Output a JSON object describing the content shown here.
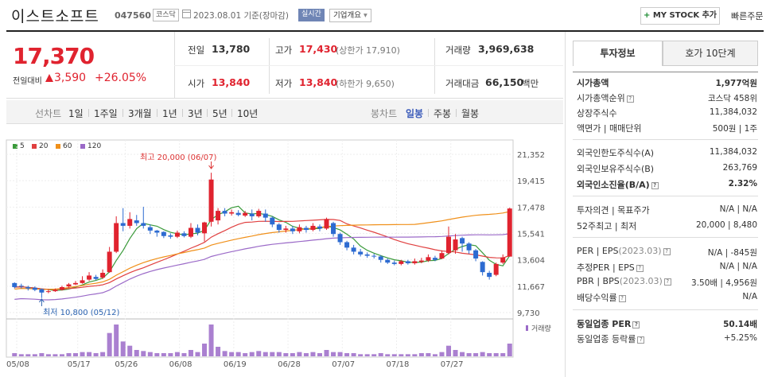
{
  "header": {
    "name": "이스트소프트",
    "code": "047560",
    "market": "코스닥",
    "date": "2023.08.01 기준(장마감)",
    "realtime": "실시간",
    "company_info": "기업개요",
    "company_arrow": "▾",
    "mystock_plus": "+",
    "mystock": "MY STOCK 추가",
    "quick_order": "빠른주문"
  },
  "price": {
    "current": "17,370",
    "change_label": "전일대비",
    "change_amount": "3,590",
    "change_percent": "+26.05%"
  },
  "summary": {
    "prev_close_label": "전일",
    "prev_close": "13,780",
    "high_label": "고가",
    "high": "17,430",
    "upper_limit": "(상한가 17,910)",
    "volume_label": "거래량",
    "volume": "3,969,638",
    "open_label": "시가",
    "open": "13,840",
    "low_label": "저가",
    "low": "13,840",
    "lower_limit": "(하한가 9,650)",
    "trade_value_label": "거래대금",
    "trade_value": "66,150",
    "trade_value_unit": "백만"
  },
  "toolbar": {
    "line_chart": "선차트",
    "periods": [
      "1일",
      "1주일",
      "3개월",
      "1년",
      "3년",
      "5년",
      "10년"
    ],
    "candle_chart": "봉차트",
    "candle_periods": [
      "일봉",
      "주봉",
      "월봉"
    ]
  },
  "legend": [
    {
      "label": "5",
      "color": "#3a9a3a"
    },
    {
      "label": "20",
      "color": "#e04040"
    },
    {
      "label": "60",
      "color": "#f0901a"
    },
    {
      "label": "120",
      "color": "#9b6ac8"
    }
  ],
  "annotations": {
    "high": "최고 20,000 (06/07)",
    "low": "최저 10,800 (05/12)",
    "volume": "거래량"
  },
  "chart_data": {
    "type": "candlestick",
    "y_ticks": [
      "21,352",
      "19,415",
      "17,478",
      "15,541",
      "13,604",
      "11,667",
      "9,730"
    ],
    "ylim": [
      9730,
      21352
    ],
    "x_ticks": [
      "05/08",
      "05/17",
      "05/26",
      "06/08",
      "06/19",
      "06/28",
      "07/07",
      "07/18",
      "07/27"
    ],
    "candles": [
      [
        11900,
        11600,
        11950,
        11500
      ],
      [
        11700,
        11650,
        11850,
        11500
      ],
      [
        11600,
        11500,
        11700,
        11350
      ],
      [
        11550,
        11400,
        11650,
        11300
      ],
      [
        11450,
        11200,
        11500,
        10800
      ],
      [
        11250,
        11300,
        11450,
        11150
      ],
      [
        11300,
        11400,
        11500,
        11250
      ],
      [
        11400,
        11600,
        11700,
        11350
      ],
      [
        11650,
        11800,
        11900,
        11550
      ],
      [
        11800,
        11900,
        12050,
        11750
      ],
      [
        11900,
        12100,
        12400,
        11850
      ],
      [
        12150,
        12450,
        12700,
        12050
      ],
      [
        12350,
        12200,
        12500,
        12100
      ],
      [
        12300,
        12650,
        12900,
        12200
      ],
      [
        12700,
        14200,
        14550,
        12650
      ],
      [
        14200,
        16300,
        16800,
        14100
      ],
      [
        16300,
        16100,
        17400,
        15700
      ],
      [
        16100,
        16600,
        17100,
        15900
      ],
      [
        16500,
        16300,
        16900,
        16100
      ],
      [
        16300,
        16100,
        17500,
        15900
      ],
      [
        16000,
        15750,
        16200,
        15500
      ],
      [
        15750,
        15600,
        15800,
        15300
      ],
      [
        15650,
        15350,
        15700,
        15200
      ],
      [
        15400,
        15300,
        15550,
        15150
      ],
      [
        15300,
        15600,
        15750,
        15200
      ],
      [
        15550,
        15350,
        15700,
        15250
      ],
      [
        15300,
        15950,
        16300,
        15200
      ],
      [
        15950,
        15600,
        16200,
        15400
      ],
      [
        15550,
        16350,
        16400,
        14950
      ],
      [
        16400,
        19500,
        20000,
        16050
      ],
      [
        16500,
        17200,
        17400,
        16200
      ],
      [
        17200,
        17000,
        17400,
        16800
      ],
      [
        17000,
        17100,
        17300,
        16850
      ],
      [
        17050,
        16900,
        17250,
        16800
      ],
      [
        16850,
        17050,
        17200,
        16750
      ],
      [
        17000,
        16800,
        17300,
        16500
      ],
      [
        16800,
        17200,
        17350,
        16700
      ],
      [
        17000,
        16700,
        17300,
        16400
      ],
      [
        16700,
        16200,
        16800,
        16000
      ],
      [
        16200,
        15800,
        16300,
        15600
      ],
      [
        15800,
        15900,
        16100,
        15600
      ],
      [
        15900,
        15700,
        16100,
        15500
      ],
      [
        15700,
        16000,
        16200,
        15550
      ],
      [
        15950,
        15800,
        16100,
        15600
      ],
      [
        15800,
        16100,
        16300,
        15700
      ],
      [
        16050,
        15900,
        16200,
        15700
      ],
      [
        15900,
        16600,
        16700,
        15800
      ],
      [
        16300,
        15500,
        16400,
        15300
      ],
      [
        15500,
        14900,
        15600,
        14700
      ],
      [
        14900,
        14500,
        15000,
        14300
      ],
      [
        14500,
        14200,
        14700,
        14000
      ],
      [
        14200,
        14000,
        14400,
        13850
      ],
      [
        14000,
        13900,
        14150,
        13750
      ],
      [
        13900,
        13850,
        14050,
        13700
      ],
      [
        13850,
        13600,
        13950,
        13400
      ],
      [
        13600,
        13400,
        13700,
        13300
      ],
      [
        13400,
        13300,
        13550,
        13200
      ],
      [
        13300,
        13500,
        13600,
        13200
      ],
      [
        13500,
        13350,
        13600,
        13250
      ],
      [
        13350,
        13500,
        13700,
        13250
      ],
      [
        13450,
        13550,
        13750,
        13350
      ],
      [
        13550,
        13800,
        14000,
        13450
      ],
      [
        13750,
        13600,
        13900,
        13500
      ],
      [
        13700,
        14100,
        14300,
        13650
      ],
      [
        14100,
        15300,
        16050,
        14000
      ],
      [
        14300,
        15100,
        15500,
        14050
      ],
      [
        15200,
        14800,
        15300,
        14200
      ],
      [
        14800,
        14300,
        14900,
        14050
      ],
      [
        14300,
        13700,
        14400,
        13500
      ],
      [
        13450,
        12700,
        13500,
        12450
      ],
      [
        12650,
        12350,
        12800,
        12150
      ],
      [
        12500,
        13300,
        13400,
        12400
      ],
      [
        13400,
        13780,
        14000,
        13300
      ],
      [
        13840,
        17370,
        17430,
        13840
      ]
    ]
  },
  "side": {
    "tabs": [
      "투자정보",
      "호가 10단계"
    ],
    "rows": {
      "market_cap_label": "시가총액",
      "market_cap": "1,977억원",
      "market_cap_rank_label": "시가총액순위",
      "market_cap_rank": "코스닥 458위",
      "shares_label": "상장주식수",
      "shares": "11,384,032",
      "face_label": "액면가 | 매매단위",
      "face": "500원 | 1주",
      "foreign_limit_label": "외국인한도주식수(A)",
      "foreign_limit": "11,384,032",
      "foreign_hold_label": "외국인보유주식수(B)",
      "foreign_hold": "263,769",
      "foreign_ratio_label": "외국인소진율(B/A)",
      "foreign_ratio": "2.32%",
      "opinion_label": "투자의견 | 목표주가",
      "opinion": "N/A | N/A",
      "range52_label": "52주최고 | 최저",
      "range52": "20,000 | 8,480",
      "per_label": "PER | EPS",
      "per_year": "(2023.03)",
      "per": "N/A | -845원",
      "est_per_label": "추정PER | EPS",
      "est_per": "N/A | N/A",
      "pbr_label": "PBR | BPS",
      "pbr_year": "(2023.03)",
      "pbr": "3.50배 | 4,956원",
      "dividend_label": "배당수익률",
      "dividend": "N/A",
      "sector_per_label": "동일업종 PER",
      "sector_per": "50.14배",
      "sector_change_label": "동일업종 등락률",
      "sector_change": "+5.25%"
    }
  }
}
